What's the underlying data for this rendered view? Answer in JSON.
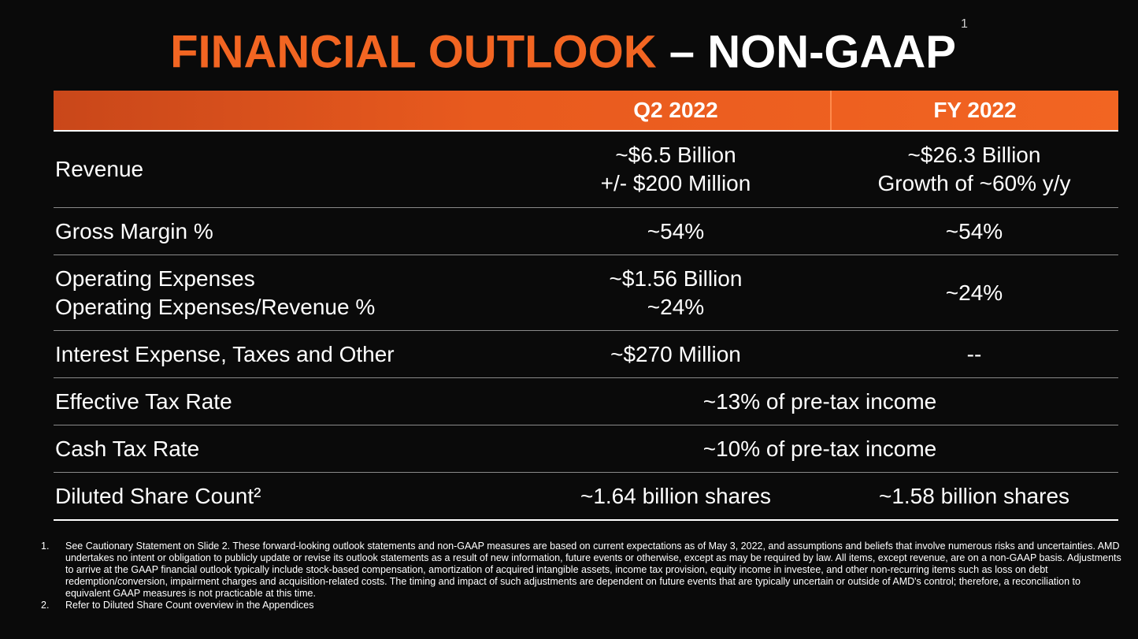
{
  "title": {
    "part1": "FINANCIAL OUTLOOK",
    "dash": "–",
    "part2": "NON-GAAP",
    "superscript": "1"
  },
  "table": {
    "headers": [
      "",
      "Q2 2022",
      "FY 2022"
    ],
    "rows": [
      {
        "label": [
          "Revenue"
        ],
        "q2": [
          "~$6.5 Billion",
          "+/- $200 Million"
        ],
        "fy": [
          "~$26.3 Billion",
          "Growth of ~60% y/y"
        ]
      },
      {
        "label": [
          "Gross Margin %"
        ],
        "q2": [
          "~54%"
        ],
        "fy": [
          "~54%"
        ]
      },
      {
        "label": [
          "Operating Expenses",
          "Operating Expenses/Revenue %"
        ],
        "q2": [
          "~$1.56 Billion",
          "~24%"
        ],
        "fy": [
          "~24%"
        ]
      },
      {
        "label": [
          "Interest Expense, Taxes and Other"
        ],
        "q2": [
          "~$270 Million"
        ],
        "fy": [
          "--"
        ]
      },
      {
        "label": [
          "Effective Tax Rate"
        ],
        "span": "~13% of pre-tax income"
      },
      {
        "label": [
          "Cash Tax Rate"
        ],
        "span": "~10% of pre-tax income"
      },
      {
        "label": [
          "Diluted Share Count²"
        ],
        "q2": [
          "~1.64 billion shares"
        ],
        "fy": [
          "~1.58 billion shares"
        ]
      }
    ]
  },
  "footnotes": [
    {
      "num": "1.",
      "text": "See Cautionary Statement on Slide 2. These forward-looking outlook statements and non-GAAP measures are based on current expectations as of May 3, 2022, and assumptions and beliefs that involve numerous risks and uncertainties. AMD undertakes no intent or obligation to publicly update or revise its outlook statements as a result of new information, future events or otherwise, except as may be required by law. All items, except revenue, are on a non-GAAP basis. Adjustments to arrive at the GAAP financial outlook typically include stock-based compensation, amortization of acquired intangible assets, income tax provision, equity income in investee, and other non-recurring items such as loss on debt redemption/conversion, impairment charges and acquisition-related costs. The timing and impact of such adjustments are dependent on future events that are typically uncertain or outside of AMD's control; therefore, a reconciliation to equivalent GAAP measures is not practicable at this time."
    },
    {
      "num": "2.",
      "text": "Refer to Diluted Share Count overview in the Appendices"
    }
  ],
  "colors": {
    "accent": "#f26522",
    "background": "#0a0a0a"
  }
}
